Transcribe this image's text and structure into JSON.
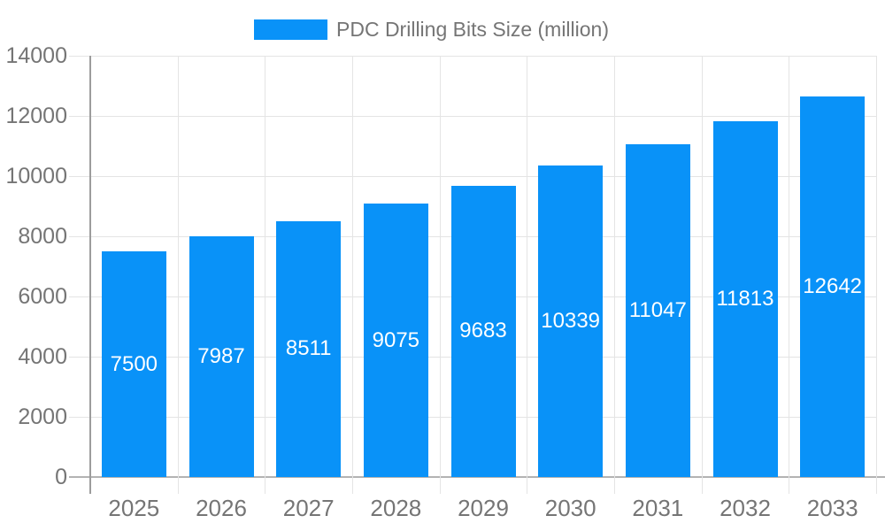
{
  "legend": {
    "series_label": "PDC Drilling Bits Size (million)"
  },
  "chart_data": {
    "type": "bar",
    "title": "PDC Drilling Bits Size (million)",
    "categories": [
      "2025",
      "2026",
      "2027",
      "2028",
      "2029",
      "2030",
      "2031",
      "2032",
      "2033"
    ],
    "values": [
      7500,
      7987,
      8511,
      9075,
      9683,
      10339,
      11047,
      11813,
      12642
    ],
    "xlabel": "",
    "ylabel": "",
    "ylim": [
      0,
      14000
    ],
    "yticks": [
      0,
      2000,
      4000,
      6000,
      8000,
      10000,
      12000,
      14000
    ],
    "grid": true,
    "legend_position": "top-center",
    "value_label_position": "inside-middle",
    "colors": {
      "bar": "#0992f8",
      "value_label": "#ffffff",
      "axis_text": "#757575",
      "gridline": "#e4e4e4",
      "x_axis_line": "#b3b3b3",
      "y_axis_line": "#9c9c9c",
      "background": "#ffffff"
    }
  }
}
